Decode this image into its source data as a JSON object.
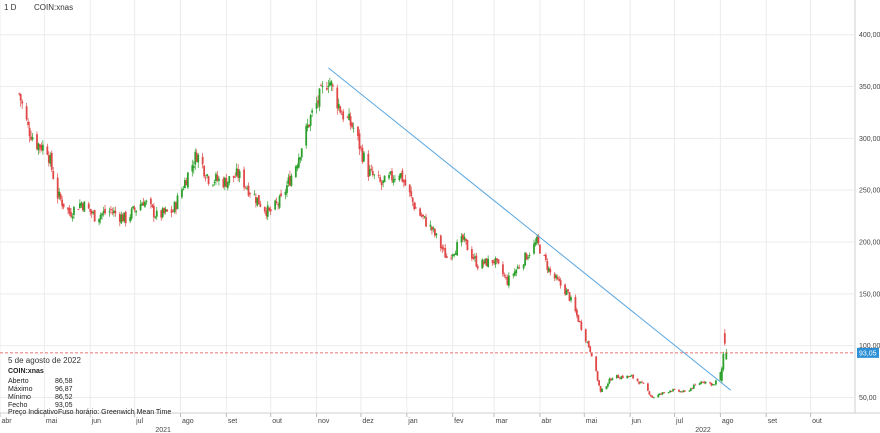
{
  "header": {
    "interval": "1 D",
    "symbol": "COIN:xnas"
  },
  "info": {
    "date": "5 de agosto de 2022",
    "symbol": "COIN:xnas",
    "rows": [
      {
        "label": "Aberto",
        "value": "86,58"
      },
      {
        "label": "Máximo",
        "value": "96,87"
      },
      {
        "label": "Mínimo",
        "value": "86,52"
      },
      {
        "label": "Fecho",
        "value": "93,05"
      }
    ],
    "footer_price": "Preço Indicativo",
    "footer_tz": "Fuso horário: Greenwich Mean Time"
  },
  "colors": {
    "up": "#2ca02c",
    "down": "#e04848",
    "trend": "#5aa7e0",
    "ref": "#e04848",
    "label_bg": "#2a8fd6"
  },
  "chart_data": {
    "type": "candlestick",
    "title": "",
    "ylim": [
      35,
      420
    ],
    "y_ticks": [
      "50,00",
      "100,00",
      "150,00",
      "200,00",
      "250,00",
      "300,00",
      "350,00",
      "400,00"
    ],
    "y_tick_values": [
      50,
      100,
      150,
      200,
      250,
      300,
      350,
      400
    ],
    "x_ticks": [
      "abr",
      "mai",
      "jun",
      "jul",
      "ago",
      "set",
      "out",
      "nov",
      "dez",
      "jan",
      "fev",
      "mar",
      "abr",
      "mai",
      "jun",
      "jul",
      "ago",
      "set",
      "out"
    ],
    "x_tick_months": [
      "2021-04",
      "2021-05",
      "2021-06",
      "2021-07",
      "2021-08",
      "2021-09",
      "2021-10",
      "2021-11",
      "2021-12",
      "2022-01",
      "2022-02",
      "2022-03",
      "2022-04",
      "2022-05",
      "2022-06",
      "2022-07",
      "2022-08",
      "2022-09",
      "2022-10"
    ],
    "year_labels": [
      {
        "label": "2021",
        "month": "2021-07"
      },
      {
        "label": "2022",
        "month": "2022-07"
      }
    ],
    "last_price": 93.05,
    "last_price_label": "93,05",
    "trendline": [
      {
        "date": "2021-11-09",
        "value": 368
      },
      {
        "date": "2022-08-08",
        "value": 57
      }
    ],
    "close_path": [
      {
        "date": "2021-04-14",
        "value": 343
      },
      {
        "date": "2021-04-20",
        "value": 310
      },
      {
        "date": "2021-04-26",
        "value": 295
      },
      {
        "date": "2021-05-03",
        "value": 290
      },
      {
        "date": "2021-05-10",
        "value": 245
      },
      {
        "date": "2021-05-18",
        "value": 228
      },
      {
        "date": "2021-05-26",
        "value": 238
      },
      {
        "date": "2021-06-04",
        "value": 225
      },
      {
        "date": "2021-06-15",
        "value": 230
      },
      {
        "date": "2021-06-25",
        "value": 222
      },
      {
        "date": "2021-07-07",
        "value": 240
      },
      {
        "date": "2021-07-16",
        "value": 225
      },
      {
        "date": "2021-07-27",
        "value": 230
      },
      {
        "date": "2021-08-05",
        "value": 262
      },
      {
        "date": "2021-08-12",
        "value": 285
      },
      {
        "date": "2021-08-20",
        "value": 262
      },
      {
        "date": "2021-08-31",
        "value": 258
      },
      {
        "date": "2021-09-09",
        "value": 265
      },
      {
        "date": "2021-09-20",
        "value": 244
      },
      {
        "date": "2021-09-30",
        "value": 228
      },
      {
        "date": "2021-10-08",
        "value": 240
      },
      {
        "date": "2021-10-18",
        "value": 275
      },
      {
        "date": "2021-10-28",
        "value": 320
      },
      {
        "date": "2021-11-09",
        "value": 358
      },
      {
        "date": "2021-11-18",
        "value": 325
      },
      {
        "date": "2021-11-26",
        "value": 310
      },
      {
        "date": "2021-12-06",
        "value": 268
      },
      {
        "date": "2021-12-15",
        "value": 255
      },
      {
        "date": "2021-12-27",
        "value": 268
      },
      {
        "date": "2022-01-07",
        "value": 232
      },
      {
        "date": "2022-01-18",
        "value": 212
      },
      {
        "date": "2022-01-28",
        "value": 185
      },
      {
        "date": "2022-02-08",
        "value": 202
      },
      {
        "date": "2022-02-18",
        "value": 178
      },
      {
        "date": "2022-03-01",
        "value": 182
      },
      {
        "date": "2022-03-10",
        "value": 162
      },
      {
        "date": "2022-03-22",
        "value": 185
      },
      {
        "date": "2022-03-30",
        "value": 200
      },
      {
        "date": "2022-04-08",
        "value": 170
      },
      {
        "date": "2022-04-20",
        "value": 150
      },
      {
        "date": "2022-04-29",
        "value": 118
      },
      {
        "date": "2022-05-06",
        "value": 92
      },
      {
        "date": "2022-05-12",
        "value": 55
      },
      {
        "date": "2022-05-20",
        "value": 70
      },
      {
        "date": "2022-06-02",
        "value": 70
      },
      {
        "date": "2022-06-10",
        "value": 62
      },
      {
        "date": "2022-06-16",
        "value": 50
      },
      {
        "date": "2022-06-28",
        "value": 57
      },
      {
        "date": "2022-07-08",
        "value": 55
      },
      {
        "date": "2022-07-20",
        "value": 66
      },
      {
        "date": "2022-07-28",
        "value": 62
      },
      {
        "date": "2022-08-02",
        "value": 78
      },
      {
        "date": "2022-08-04",
        "value": 110
      },
      {
        "date": "2022-08-05",
        "value": 93
      }
    ]
  }
}
